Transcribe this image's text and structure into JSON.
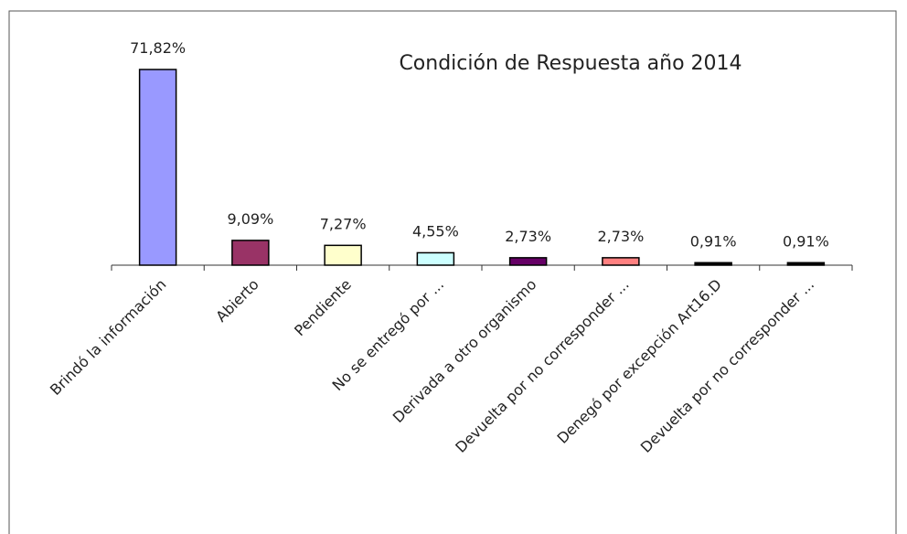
{
  "chart_data": {
    "type": "bar",
    "title": "Condición de Respuesta año 2014",
    "categories": [
      "Brindó la información",
      "Abierto",
      "Pendiente",
      "No se entregó por ...",
      "Derivada a otro organismo",
      "Devuelta por no corresponder ...",
      "Denegó por excepción  Art16.D",
      "Devuelta por no corresponder ..."
    ],
    "values": [
      71.82,
      9.09,
      7.27,
      4.55,
      2.73,
      2.73,
      0.91,
      0.91
    ],
    "value_labels": [
      "71,82%",
      "9,09%",
      "7,27%",
      "4,55%",
      "2,73%",
      "2,73%",
      "0,91%",
      "0,91%"
    ],
    "colors": [
      "#9999ff",
      "#993366",
      "#ffffcc",
      "#ccffff",
      "#660066",
      "#ff8080",
      "#000000",
      "#000000"
    ]
  }
}
